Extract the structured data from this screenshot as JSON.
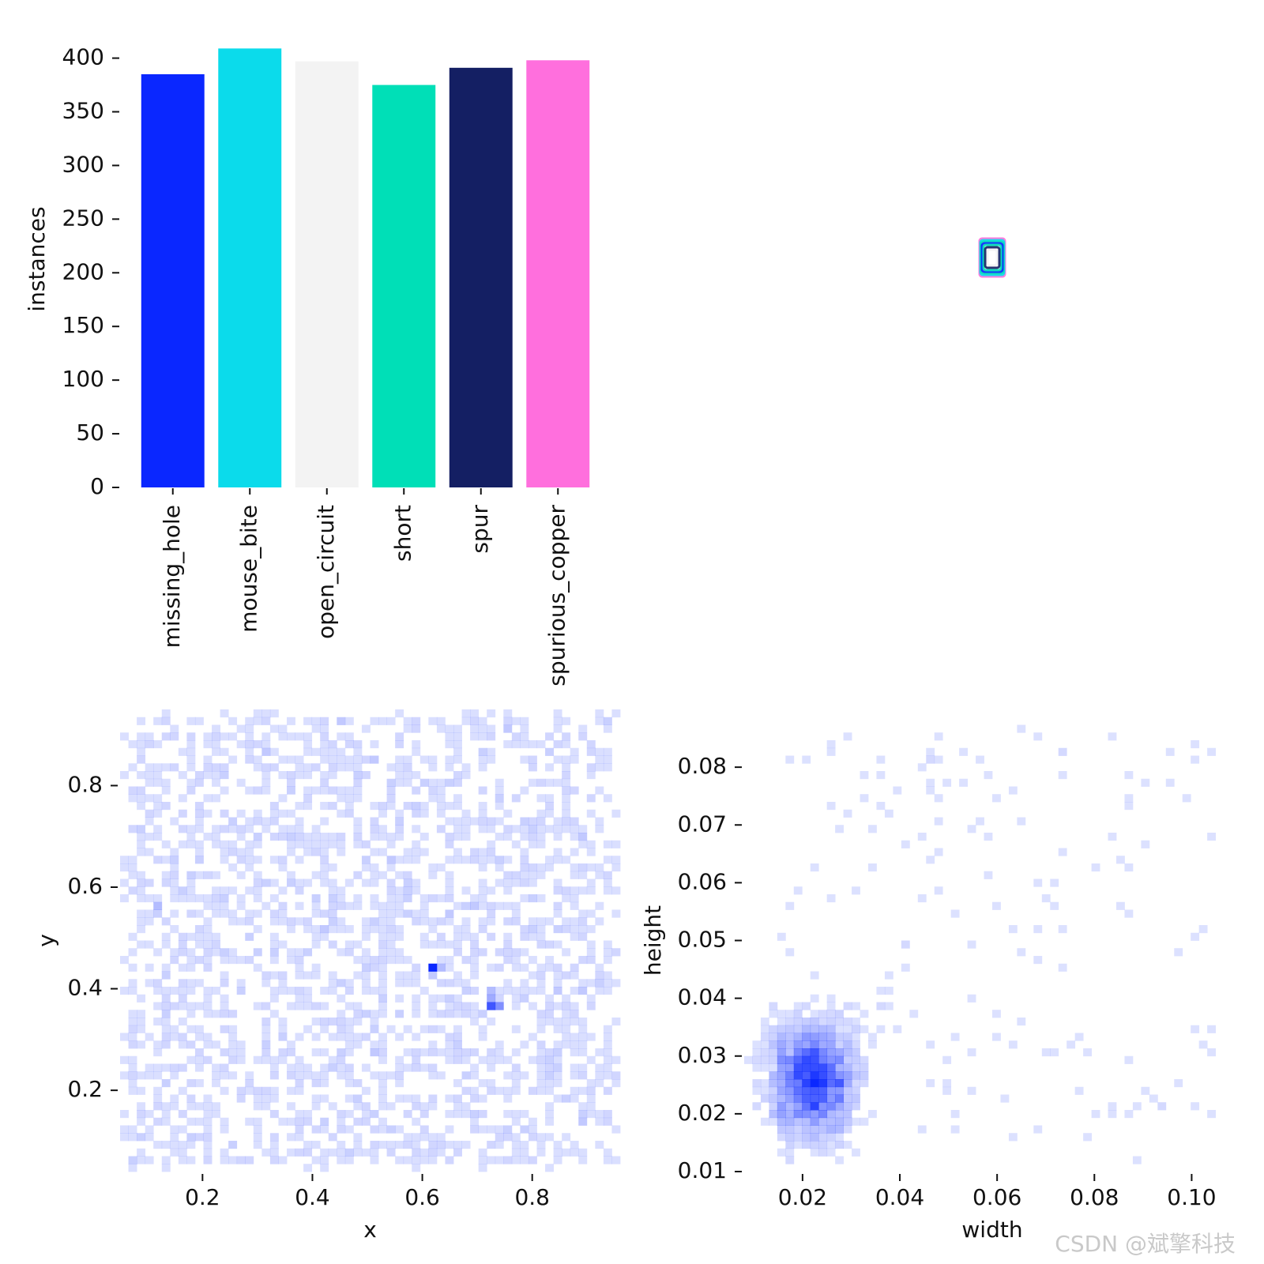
{
  "chart_data": [
    {
      "type": "bar",
      "categories": [
        "missing_hole",
        "mouse_bite",
        "open_circuit",
        "short",
        "spur",
        "spurious_copper"
      ],
      "values": [
        385,
        409,
        397,
        375,
        391,
        398
      ],
      "colors": [
        "#0a27ff",
        "#0bdbeb",
        "#f3f3f3",
        "#00dfb7",
        "#141f63",
        "#ff6fdd"
      ],
      "xlabel": "",
      "ylabel": "instances",
      "yticks": [
        "0",
        "50",
        "100",
        "150",
        "200",
        "250",
        "300",
        "350",
        "400"
      ],
      "ylim": [
        0,
        410
      ],
      "grid": false
    },
    {
      "type": "image",
      "content": "overlay of label boxes, centered"
    },
    {
      "type": "heatmap",
      "xlabel": "x",
      "ylabel": "y",
      "xlim": [
        0.05,
        0.96
      ],
      "ylim": [
        0.04,
        0.95
      ],
      "xticks": [
        "0.2",
        "0.4",
        "0.6",
        "0.8"
      ],
      "yticks": [
        "0.2",
        "0.4",
        "0.6",
        "0.8"
      ],
      "color": "#0a27ff",
      "distribution": "roughly uniform over 0.05–0.95 in both x and y; densest cells near (0.62, 0.44) and (0.73, 0.37)"
    },
    {
      "type": "heatmap",
      "xlabel": "width",
      "ylabel": "height",
      "xlim": [
        0.008,
        0.11
      ],
      "ylim": [
        0.01,
        0.09
      ],
      "xticks": [
        "0.02",
        "0.04",
        "0.06",
        "0.08",
        "0.10"
      ],
      "yticks": [
        "0.01",
        "0.02",
        "0.03",
        "0.04",
        "0.05",
        "0.06",
        "0.07",
        "0.08"
      ],
      "color": "#0a27ff",
      "distribution": "concentrated around width 0.022, height 0.025; sparse tail to width 0.10 and height 0.09"
    }
  ],
  "watermark": "CSDN @斌擎科技"
}
